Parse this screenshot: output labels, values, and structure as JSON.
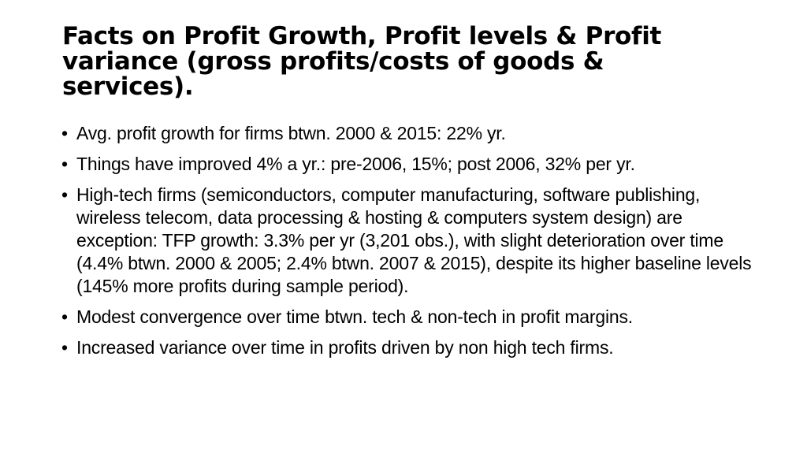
{
  "slide": {
    "title": "Facts on Profit Growth, Profit levels & Profit variance (gross profits/costs of goods & services).",
    "bullet_symbol": "•",
    "bullets": [
      "Avg. profit growth for firms btwn. 2000 & 2015: 22% yr.",
      "Things have improved 4% a yr.: pre-2006, 15%; post 2006, 32% per yr.",
      "High-tech firms (semiconductors, computer manufacturing, software publishing, wireless telecom, data processing & hosting & computers system design) are exception: TFP growth: 3.3% per yr (3,201 obs.), with slight deterioration over time (4.4% btwn. 2000 & 2005; 2.4% btwn. 2007 & 2015), despite its higher baseline levels (145% more profits during sample period).",
      "Modest convergence over time btwn. tech & non-tech in profit margins.",
      "Increased variance over time in profits driven by non high tech firms."
    ]
  }
}
